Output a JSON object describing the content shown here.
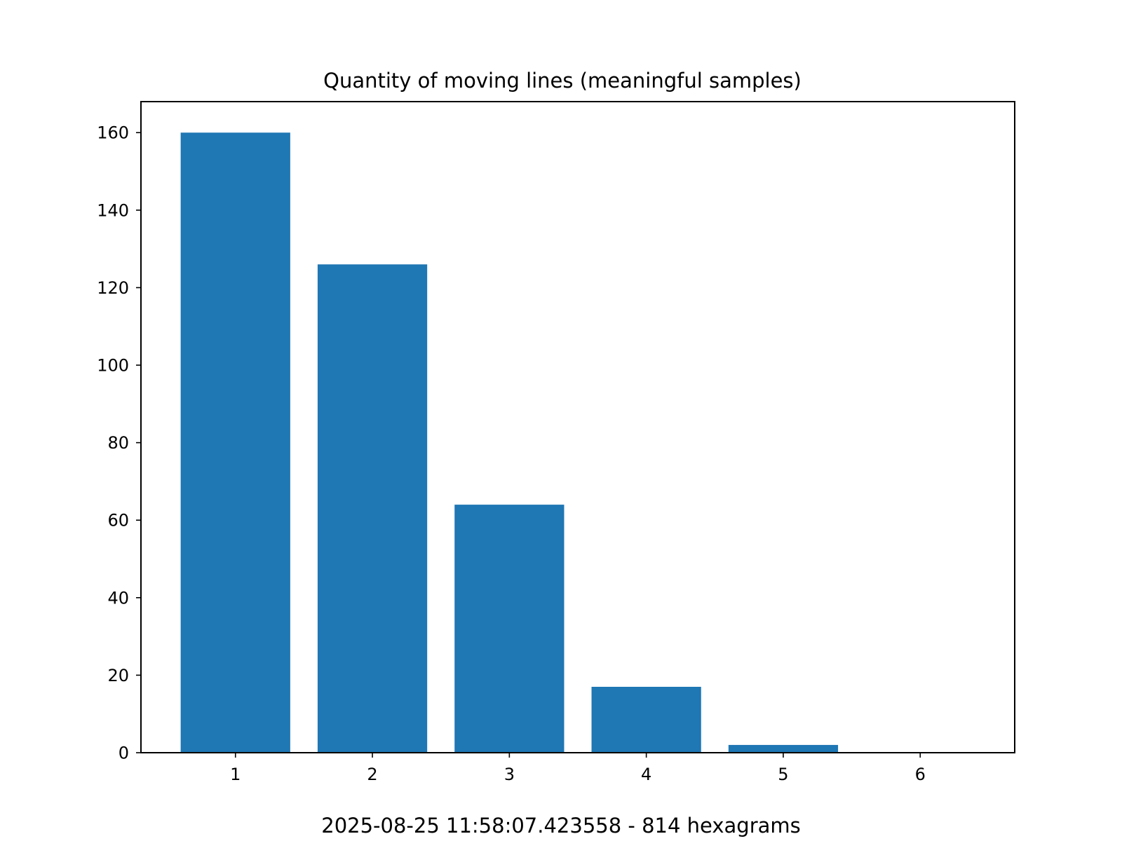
{
  "chart_data": {
    "type": "bar",
    "title": "Quantity of moving lines (meaningful samples)",
    "xlabel": "",
    "ylabel": "",
    "categories": [
      "1",
      "2",
      "3",
      "4",
      "5",
      "6"
    ],
    "values": [
      160,
      126,
      64,
      17,
      2,
      0
    ],
    "ylim": [
      0,
      168
    ],
    "yticks": [
      0,
      20,
      40,
      60,
      80,
      100,
      120,
      140,
      160
    ],
    "bar_color": "#1f77b4",
    "grid": false,
    "legend": "none"
  },
  "footer": {
    "text": "2025-08-25 11:58:07.423558 - 814 hexagrams"
  }
}
